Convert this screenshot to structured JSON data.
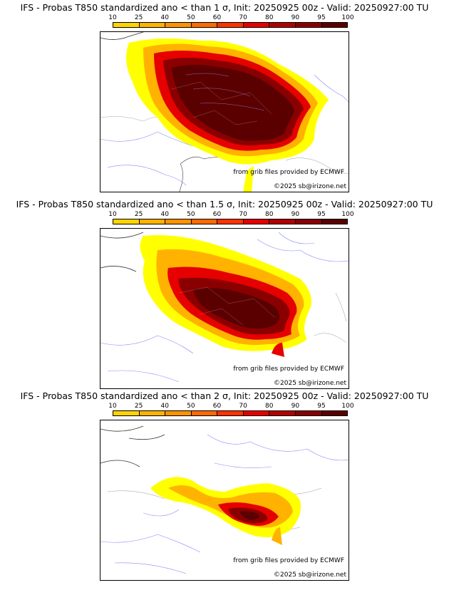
{
  "colorbar": {
    "ticks": [
      "10",
      "25",
      "40",
      "50",
      "60",
      "70",
      "80",
      "90",
      "95",
      "100"
    ],
    "colors": [
      "#ffff00",
      "#ffd400",
      "#ffb300",
      "#ff9200",
      "#ff6a00",
      "#ff3300",
      "#e60000",
      "#b30000",
      "#8a0000",
      "#5a0000"
    ]
  },
  "panels": [
    {
      "title": "IFS - Probas T850  standardized ano < than 1 σ, Init: 20250925 00z - Valid: 20250927:00 TU",
      "credit": "from grib files provided by ECMWF",
      "copyright": "©2025 sb@irizone.net"
    },
    {
      "title": "IFS - Probas T850  standardized ano < than 1.5 σ, Init: 20250925 00z - Valid: 20250927:00 TU",
      "credit": "from grib files provided by ECMWF",
      "copyright": "©2025 sb@irizone.net"
    },
    {
      "title": "IFS - Probas T850  standardized ano < than 2 σ, Init: 20250925 00z - Valid: 20250927:00 TU",
      "credit": "from grib files provided by ECMWF",
      "copyright": "©2025 sb@irizone.net"
    }
  ]
}
